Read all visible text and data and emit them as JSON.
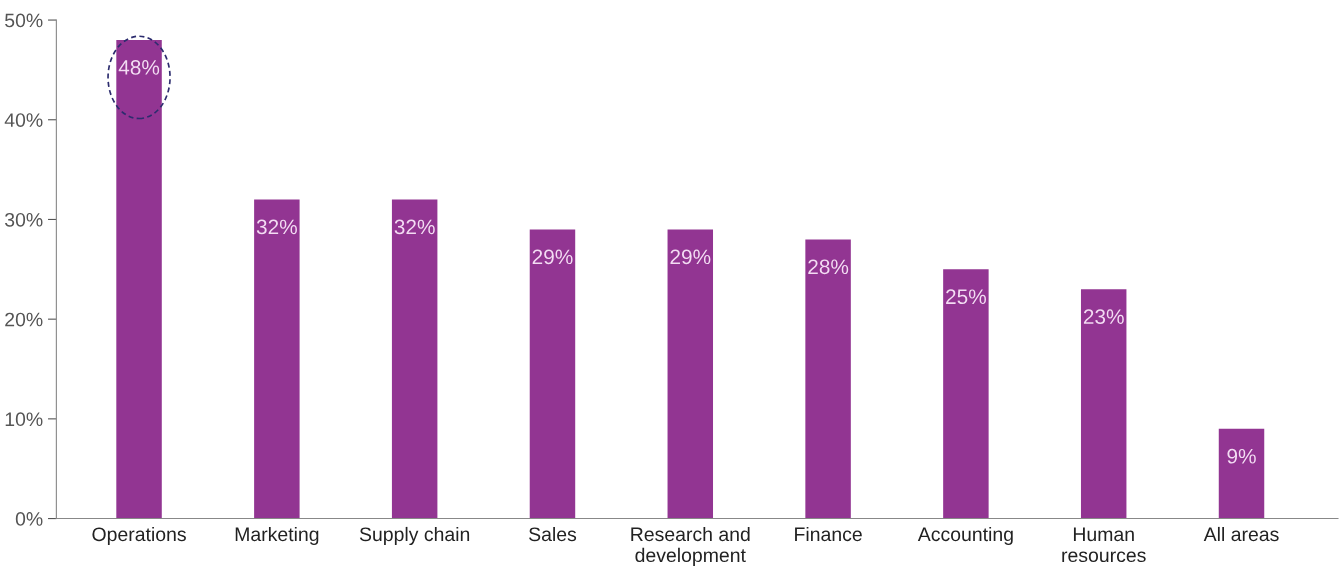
{
  "chart_data": {
    "type": "bar",
    "categories": [
      "Operations",
      "Marketing",
      "Supply chain",
      "Sales",
      "Research and\ndevelopment",
      "Finance",
      "Accounting",
      "Human\nresources",
      "All areas"
    ],
    "values": [
      48,
      32,
      32,
      29,
      29,
      28,
      25,
      23,
      9
    ],
    "value_labels": [
      "48%",
      "32%",
      "32%",
      "29%",
      "29%",
      "28%",
      "25%",
      "23%",
      "9%"
    ],
    "color": "#923592",
    "ylim": [
      0,
      50
    ],
    "yticks": [
      {
        "value": 0,
        "label": "0%"
      },
      {
        "value": 10,
        "label": "10%"
      },
      {
        "value": 20,
        "label": "20%"
      },
      {
        "value": 30,
        "label": "30%"
      },
      {
        "value": 40,
        "label": "40%"
      },
      {
        "value": 50,
        "label": "50%"
      }
    ],
    "grid": false
  }
}
